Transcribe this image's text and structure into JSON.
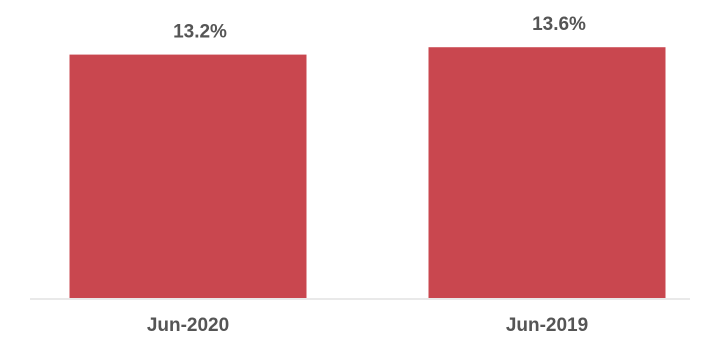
{
  "chart_data": {
    "type": "bar",
    "categories": [
      "Jun-2020",
      "Jun-2019"
    ],
    "values": [
      13.2,
      13.6
    ],
    "data_labels": [
      "13.2%",
      "13.6%"
    ],
    "value_unit": "%",
    "title": "",
    "xlabel": "",
    "ylabel": "",
    "ylim": [
      0,
      14.1
    ],
    "grid": false,
    "legend": "none",
    "colors": {
      "bar": "#c9474f",
      "text": "#555555",
      "baseline": "#e2e2e2"
    }
  }
}
